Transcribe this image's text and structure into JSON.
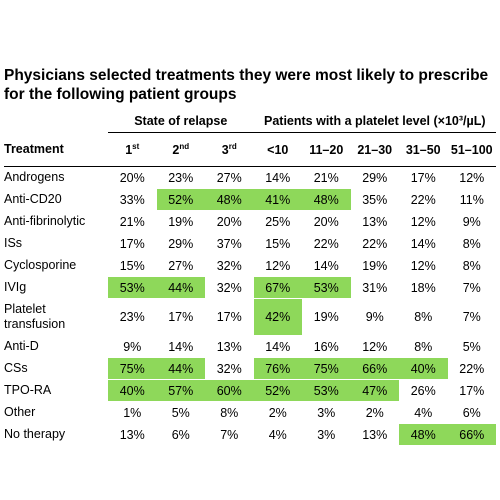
{
  "chart_data": {
    "type": "table",
    "title": "Physicians selected treatments they were most likely to prescribe for the following patient groups",
    "group_headers": [
      {
        "label": "State of relapse",
        "span": 3
      },
      {
        "label": "Patients with a platelet level (×10³/µL)",
        "span": 5
      }
    ],
    "row_header_label": "Treatment",
    "columns": [
      {
        "base": "1",
        "sup": "st"
      },
      {
        "base": "2",
        "sup": "nd"
      },
      {
        "base": "3",
        "sup": "rd"
      },
      {
        "base": "<10",
        "sup": ""
      },
      {
        "base": "11–20",
        "sup": ""
      },
      {
        "base": "21–30",
        "sup": ""
      },
      {
        "base": "31–50",
        "sup": ""
      },
      {
        "base": "51–100",
        "sup": ""
      }
    ],
    "rows": [
      {
        "label": "Androgens",
        "values": [
          "20%",
          "23%",
          "27%",
          "14%",
          "21%",
          "29%",
          "17%",
          "12%"
        ],
        "highlight": [
          0,
          0,
          0,
          0,
          0,
          0,
          0,
          0
        ]
      },
      {
        "label": "Anti-CD20",
        "values": [
          "33%",
          "52%",
          "48%",
          "41%",
          "48%",
          "35%",
          "22%",
          "11%"
        ],
        "highlight": [
          0,
          1,
          1,
          1,
          1,
          0,
          0,
          0
        ]
      },
      {
        "label": "Anti-fibrinolytic",
        "values": [
          "21%",
          "19%",
          "20%",
          "25%",
          "20%",
          "13%",
          "12%",
          "9%"
        ],
        "highlight": [
          0,
          0,
          0,
          0,
          0,
          0,
          0,
          0
        ]
      },
      {
        "label": "ISs",
        "values": [
          "17%",
          "29%",
          "37%",
          "15%",
          "22%",
          "22%",
          "14%",
          "8%"
        ],
        "highlight": [
          0,
          0,
          0,
          0,
          0,
          0,
          0,
          0
        ]
      },
      {
        "label": "Cyclosporine",
        "values": [
          "15%",
          "27%",
          "32%",
          "12%",
          "14%",
          "19%",
          "12%",
          "8%"
        ],
        "highlight": [
          0,
          0,
          0,
          0,
          0,
          0,
          0,
          0
        ]
      },
      {
        "label": "IVIg",
        "values": [
          "53%",
          "44%",
          "32%",
          "67%",
          "53%",
          "31%",
          "18%",
          "7%"
        ],
        "highlight": [
          1,
          1,
          0,
          1,
          1,
          0,
          0,
          0
        ]
      },
      {
        "label": "Platelet transfusion",
        "values": [
          "23%",
          "17%",
          "17%",
          "42%",
          "19%",
          "9%",
          "8%",
          "7%"
        ],
        "highlight": [
          0,
          0,
          0,
          1,
          0,
          0,
          0,
          0
        ]
      },
      {
        "label": "Anti-D",
        "values": [
          "9%",
          "14%",
          "13%",
          "14%",
          "16%",
          "12%",
          "8%",
          "5%"
        ],
        "highlight": [
          0,
          0,
          0,
          0,
          0,
          0,
          0,
          0
        ]
      },
      {
        "label": "CSs",
        "values": [
          "75%",
          "44%",
          "32%",
          "76%",
          "75%",
          "66%",
          "40%",
          "22%"
        ],
        "highlight": [
          1,
          1,
          0,
          1,
          1,
          1,
          1,
          0
        ]
      },
      {
        "label": "TPO-RA",
        "values": [
          "40%",
          "57%",
          "60%",
          "52%",
          "53%",
          "47%",
          "26%",
          "17%"
        ],
        "highlight": [
          1,
          1,
          1,
          1,
          1,
          1,
          0,
          0
        ]
      },
      {
        "label": "Other",
        "values": [
          "1%",
          "5%",
          "8%",
          "2%",
          "3%",
          "2%",
          "4%",
          "6%"
        ],
        "highlight": [
          0,
          0,
          0,
          0,
          0,
          0,
          0,
          0
        ]
      },
      {
        "label": "No therapy",
        "values": [
          "13%",
          "6%",
          "7%",
          "4%",
          "3%",
          "13%",
          "48%",
          "66%"
        ],
        "highlight": [
          0,
          0,
          0,
          0,
          0,
          0,
          1,
          1
        ]
      }
    ],
    "highlight_color": "#8ed85a"
  }
}
